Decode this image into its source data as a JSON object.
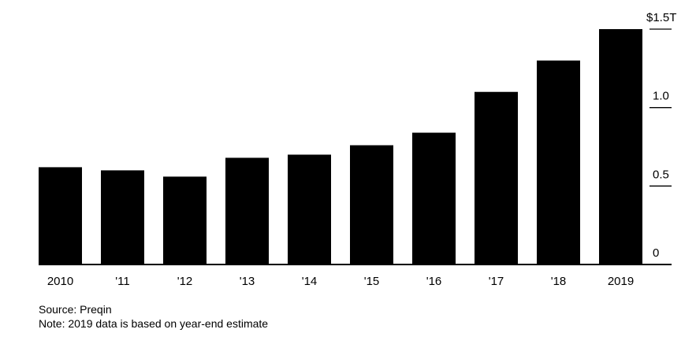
{
  "chart_data": {
    "type": "bar",
    "categories": [
      "2010",
      "'11",
      "'12",
      "'13",
      "'14",
      "'15",
      "'16",
      "'17",
      "'18",
      "2019"
    ],
    "values": [
      0.62,
      0.6,
      0.56,
      0.68,
      0.7,
      0.76,
      0.84,
      1.1,
      1.3,
      1.5
    ],
    "ylim": [
      0,
      1.5
    ],
    "yticks": [
      {
        "value": 0,
        "label": "0"
      },
      {
        "value": 0.5,
        "label": "0.5"
      },
      {
        "value": 1.0,
        "label": "1.0"
      },
      {
        "value": 1.5,
        "label": "$1.5T"
      }
    ],
    "grid": false,
    "bar_color": "#000000"
  },
  "footer": {
    "source": "Source: Preqin",
    "note": "Note: 2019 data is based on year-end estimate"
  }
}
